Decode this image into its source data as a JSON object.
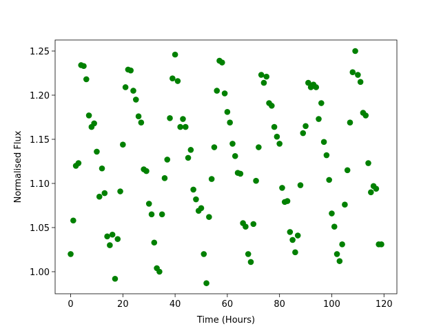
{
  "chart_data": {
    "type": "scatter",
    "xlabel": "Time (Hours)",
    "ylabel": "Normalised Flux",
    "color": "#008000",
    "x": [
      0,
      1,
      2,
      3,
      4,
      5,
      6,
      7,
      8,
      9,
      10,
      11,
      12,
      13,
      14,
      15,
      16,
      17,
      18,
      19,
      20,
      21,
      22,
      23,
      24,
      25,
      26,
      27,
      28,
      29,
      30,
      31,
      32,
      33,
      34,
      35,
      36,
      37,
      38,
      39,
      40,
      41,
      42,
      43,
      44,
      45,
      46,
      47,
      48,
      49,
      50,
      51,
      52,
      53,
      54,
      55,
      56,
      57,
      58,
      59,
      60,
      61,
      62,
      63,
      64,
      65,
      66,
      67,
      68,
      69,
      70,
      71,
      72,
      73,
      74,
      75,
      76,
      77,
      78,
      79,
      80,
      81,
      82,
      83,
      84,
      85,
      86,
      87,
      88,
      89,
      90,
      91,
      92,
      93,
      94,
      95,
      96,
      97,
      98,
      99,
      100,
      101,
      102,
      103,
      104,
      105,
      106,
      107,
      108,
      109,
      110,
      111,
      112,
      113,
      114,
      115,
      116,
      117,
      118,
      119
    ],
    "values": [
      1.02,
      1.058,
      1.12,
      1.123,
      1.234,
      1.233,
      1.218,
      1.177,
      1.164,
      1.168,
      1.136,
      1.085,
      1.117,
      1.089,
      1.04,
      1.03,
      1.042,
      0.992,
      1.037,
      1.091,
      1.144,
      1.209,
      1.229,
      1.228,
      1.205,
      1.195,
      1.176,
      1.169,
      1.116,
      1.114,
      1.077,
      1.065,
      1.033,
      1.004,
      1.0,
      1.065,
      1.106,
      1.127,
      1.174,
      1.219,
      1.246,
      1.216,
      1.164,
      1.173,
      1.164,
      1.129,
      1.138,
      1.093,
      1.082,
      1.069,
      1.072,
      1.02,
      0.987,
      1.062,
      1.105,
      1.141,
      1.205,
      1.239,
      1.237,
      1.202,
      1.181,
      1.169,
      1.145,
      1.131,
      1.112,
      1.111,
      1.055,
      1.051,
      1.02,
      1.011,
      1.054,
      1.103,
      1.141,
      1.223,
      1.214,
      1.221,
      1.191,
      1.188,
      1.164,
      1.153,
      1.145,
      1.095,
      1.079,
      1.08,
      1.045,
      1.036,
      1.022,
      1.041,
      1.098,
      1.157,
      1.165,
      1.214,
      1.209,
      1.212,
      1.209,
      1.173,
      1.191,
      1.147,
      1.132,
      1.104,
      1.066,
      1.051,
      1.02,
      1.012,
      1.031,
      1.076,
      1.115,
      1.169,
      1.226,
      1.25,
      1.223,
      1.215,
      1.18,
      1.177,
      1.123,
      1.09,
      1.097,
      1.094,
      1.031,
      1.031
    ],
    "xlim": [
      -5.95,
      124.95
    ],
    "xticks": [
      0,
      20,
      40,
      60,
      80,
      100,
      120
    ],
    "ylim": [
      0.975,
      1.2625
    ],
    "yticks": [
      {
        "value": 1.0,
        "label": "1.00"
      },
      1.05,
      {
        "value": 1.1,
        "label": "1.10"
      },
      1.15,
      {
        "value": 1.2,
        "label": "1.20"
      },
      1.25
    ]
  }
}
